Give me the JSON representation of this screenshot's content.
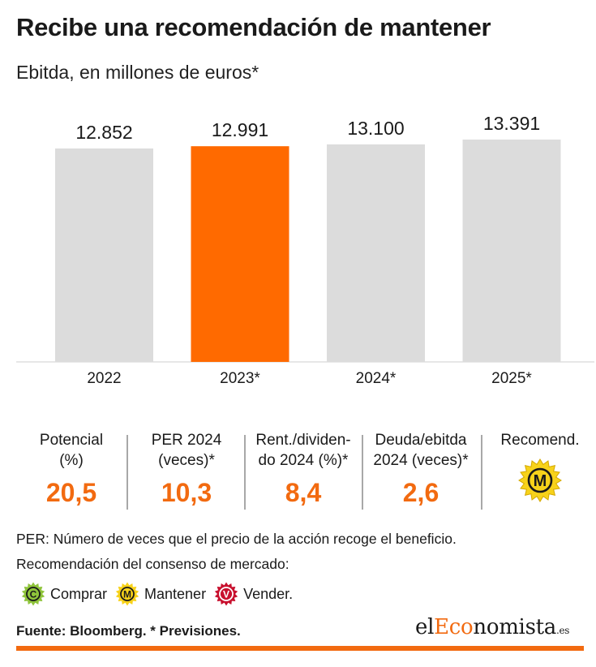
{
  "title": "Recibe una recomendación de mantener",
  "subtitle": "Ebitda, en millones de euros*",
  "chart_data": {
    "type": "bar",
    "categories": [
      "2022",
      "2023*",
      "2024*",
      "2025*"
    ],
    "values": [
      12852,
      12991,
      13100,
      13391
    ],
    "value_labels": [
      "12.852",
      "12.991",
      "13.100",
      "13.391"
    ],
    "highlight_index": 1,
    "colors": {
      "default": "#dcdcdc",
      "highlight": "#ff6a00"
    },
    "ylim": [
      0,
      13391
    ],
    "grid": false,
    "legend": "none"
  },
  "metrics": [
    {
      "label_line1": "Potencial",
      "label_line2": "(%)",
      "value": "20,5"
    },
    {
      "label_line1": "PER 2024",
      "label_line2": "(veces)*",
      "value": "10,3"
    },
    {
      "label_line1": "Rent./dividen-",
      "label_line2": "do 2024 (%)*",
      "value": "8,4"
    },
    {
      "label_line1": "Deuda/ebitda",
      "label_line2": "2024 (veces)*",
      "value": "2,6"
    },
    {
      "label_line1": "Recomend.",
      "label_line2": "",
      "seal_letter": "M",
      "seal_icon": "mantener-seal-icon"
    }
  ],
  "notes": {
    "per": "PER: Número de veces que el precio de la acción recoge el beneficio.",
    "consensus": "Recomendación del consenso de mercado:"
  },
  "legend": [
    {
      "letter": "C",
      "label": "Comprar",
      "color": "#8fc43b",
      "text_color": "#1a1a1a"
    },
    {
      "letter": "M",
      "label": "Mantener",
      "color": "#f7d21a",
      "text_color": "#1a1a1a"
    },
    {
      "letter": "V",
      "label": "Vender.",
      "color": "#c8102e",
      "text_color": "#ffffff"
    }
  ],
  "source": "Fuente: Bloomberg. * Previsiones.",
  "logo": {
    "prefix": "el",
    "accent": "Eco",
    "suffix": "nomista",
    "tld": ".es"
  },
  "accent_color": "#f26a10"
}
